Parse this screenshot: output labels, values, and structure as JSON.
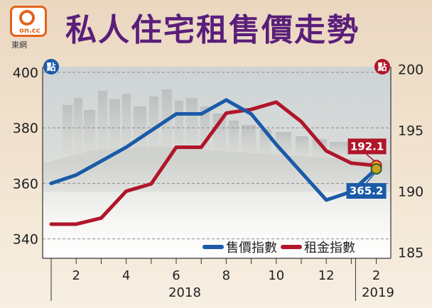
{
  "header": {
    "title": "私人住宅租售價走勢",
    "logo_text": "on.cc",
    "logo_sub": "東網"
  },
  "colors": {
    "sale_series": "#1a5aa8",
    "rent_series": "#b0162a",
    "title": "#5a1e7a"
  },
  "chart_data": {
    "type": "line",
    "title": "私人住宅租售價走勢",
    "x_ticks": [
      "2",
      "4",
      "6",
      "8",
      "10",
      "12",
      "2"
    ],
    "x_year_labels": [
      "2018",
      "2019"
    ],
    "x": [
      "2018-01",
      "2018-02",
      "2018-03",
      "2018-04",
      "2018-05",
      "2018-06",
      "2018-07",
      "2018-08",
      "2018-09",
      "2018-10",
      "2018-11",
      "2018-12",
      "2019-01",
      "2019-02"
    ],
    "y_left": {
      "label": "點",
      "ticks": [
        340,
        360,
        380,
        400
      ],
      "lim": [
        333,
        402
      ]
    },
    "y_right": {
      "label": "點",
      "ticks": [
        185,
        190,
        195,
        200
      ],
      "lim": [
        184.5,
        200.2
      ]
    },
    "grid": "horizontal-dashed",
    "legend_position": "bottom-right",
    "series": [
      {
        "name": "售價指數",
        "axis": "left",
        "values": [
          360,
          363,
          368,
          373,
          379,
          385,
          385,
          390,
          385,
          374,
          364,
          354,
          357,
          365.2
        ]
      },
      {
        "name": "租金指數",
        "axis": "right",
        "values": [
          187.3,
          187.3,
          187.8,
          190.0,
          190.6,
          193.6,
          193.6,
          196.4,
          196.7,
          197.3,
          195.7,
          193.3,
          192.3,
          192.1
        ]
      }
    ],
    "annotations": [
      {
        "series": "售價指數",
        "text": "365.2"
      },
      {
        "series": "租金指數",
        "text": "192.1"
      }
    ]
  }
}
